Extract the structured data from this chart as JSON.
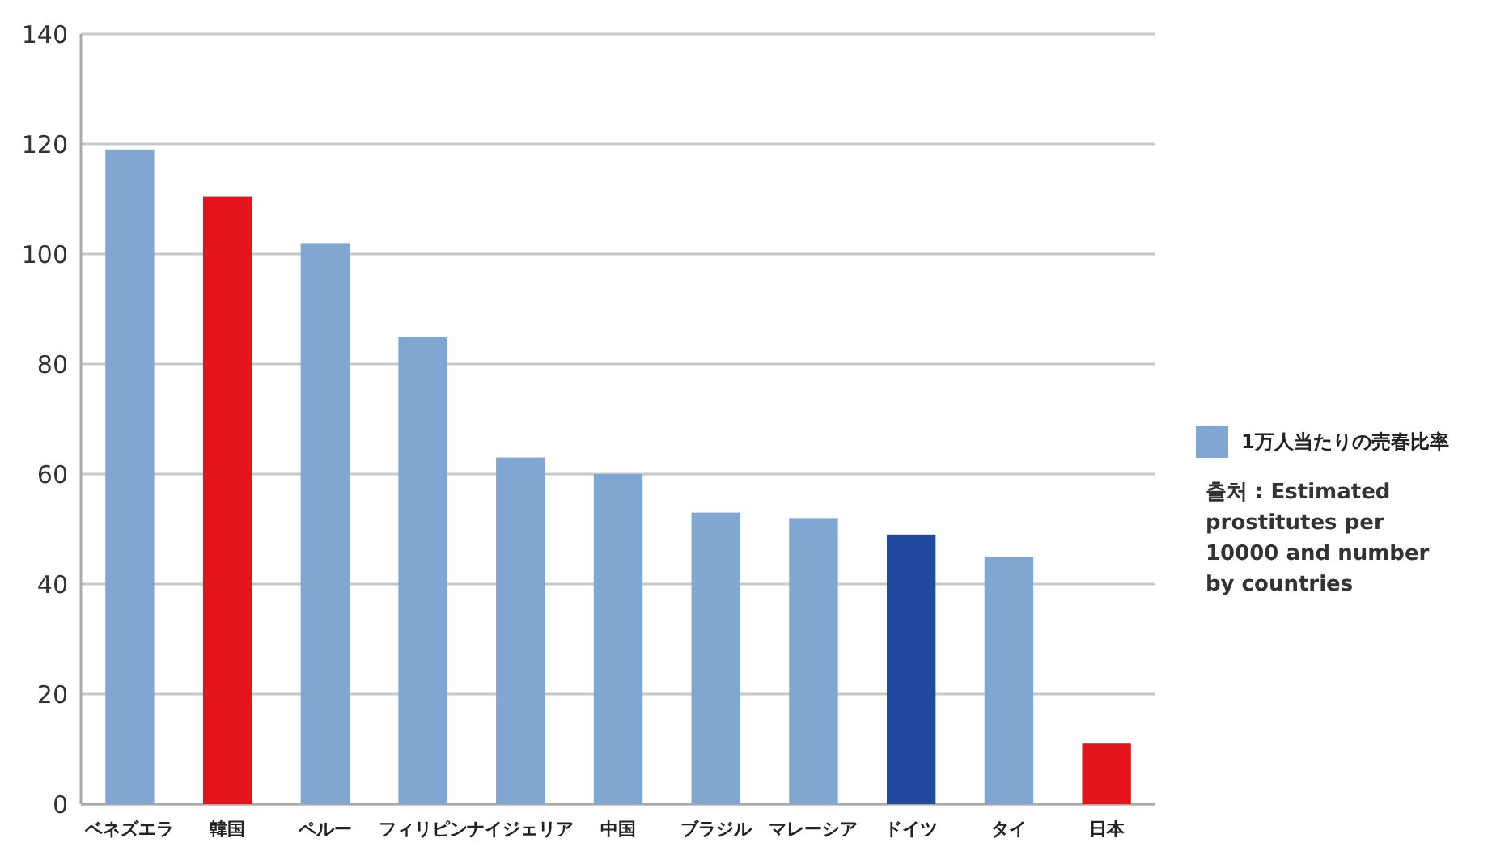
{
  "chart_data": {
    "type": "bar",
    "categories": [
      "ベネズエラ",
      "韓国",
      "ペルー",
      "フィリピン",
      "ナイジェリア",
      "中国",
      "ブラジル",
      "マレーシア",
      "ドイツ",
      "タイ",
      "日本"
    ],
    "series": [
      {
        "name": "1万人当たりの売春比率",
        "color": "#7fa7d2",
        "values": [
          119,
          110.5,
          102,
          85,
          63,
          60,
          53,
          52,
          49,
          45,
          11
        ],
        "colors": [
          "#7fa7d2",
          "#e5141b",
          "#7fa7d2",
          "#7fa7d2",
          "#7fa7d2",
          "#7fa7d2",
          "#7fa7d2",
          "#7fa7d2",
          "#1f4a9e",
          "#7fa7d2",
          "#e5141b"
        ]
      }
    ],
    "ylim": [
      0,
      140
    ],
    "yticks": [
      0,
      20,
      40,
      60,
      80,
      100,
      120,
      140
    ],
    "grid": "y",
    "legend": "right",
    "annotations": [
      "출처 : Estimated prostitutes per 10000 and number by countries"
    ]
  }
}
